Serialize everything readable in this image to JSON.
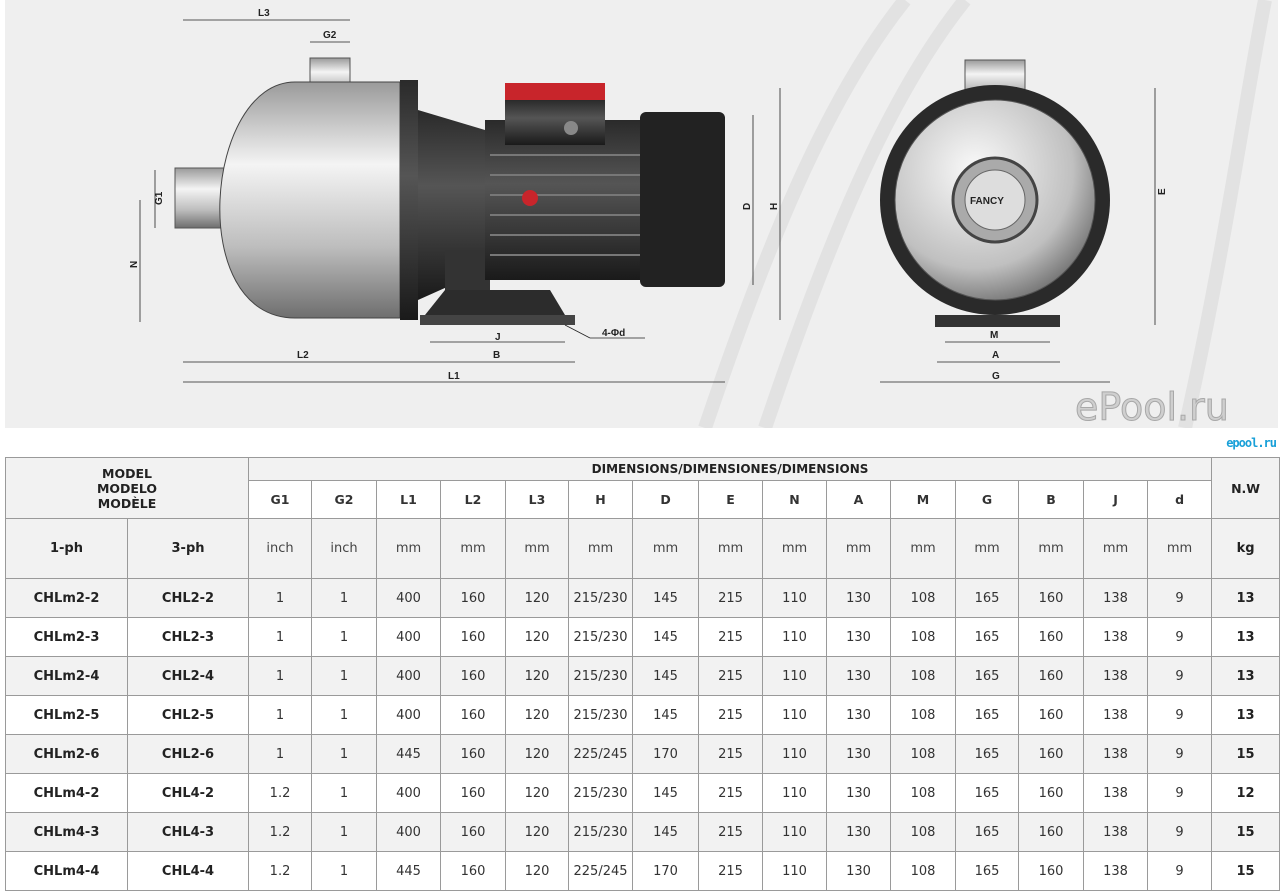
{
  "drawing": {
    "labels": {
      "L3": "L3",
      "G2": "G2",
      "G1": "G1",
      "N": "N",
      "D": "D",
      "H": "H",
      "J": "J",
      "B": "B",
      "L2": "L2",
      "L1": "L1",
      "hole": "4-Φd",
      "E": "E",
      "M": "M",
      "A": "A",
      "G": "G",
      "brand": "FANCY"
    },
    "colors": {
      "motor_box": "#c8252b",
      "background": "#efefef"
    }
  },
  "table": {
    "model_header": [
      "MODEL",
      "MODELO",
      "MODÈLE"
    ],
    "dimensions_header": "DIMENSIONS/DIMENSIONES/DIMENSIONS",
    "nw_header": "N.W",
    "columns": [
      "G1",
      "G2",
      "L1",
      "L2",
      "L3",
      "H",
      "D",
      "E",
      "N",
      "A",
      "M",
      "G",
      "B",
      "J",
      "d"
    ],
    "sub_headers": {
      "ph1": "1-ph",
      "ph3": "3-ph"
    },
    "units": [
      "inch",
      "inch",
      "mm",
      "mm",
      "mm",
      "mm",
      "mm",
      "mm",
      "mm",
      "mm",
      "mm",
      "mm",
      "mm",
      "mm",
      "mm"
    ],
    "nw_unit": "kg",
    "rows": [
      {
        "ph1": "CHLm2-2",
        "ph3": "CHL2-2",
        "v": [
          "1",
          "1",
          "400",
          "160",
          "120",
          "215/230",
          "145",
          "215",
          "110",
          "130",
          "108",
          "165",
          "160",
          "138",
          "9"
        ],
        "nw": "13"
      },
      {
        "ph1": "CHLm2-3",
        "ph3": "CHL2-3",
        "v": [
          "1",
          "1",
          "400",
          "160",
          "120",
          "215/230",
          "145",
          "215",
          "110",
          "130",
          "108",
          "165",
          "160",
          "138",
          "9"
        ],
        "nw": "13"
      },
      {
        "ph1": "CHLm2-4",
        "ph3": "CHL2-4",
        "v": [
          "1",
          "1",
          "400",
          "160",
          "120",
          "215/230",
          "145",
          "215",
          "110",
          "130",
          "108",
          "165",
          "160",
          "138",
          "9"
        ],
        "nw": "13"
      },
      {
        "ph1": "CHLm2-5",
        "ph3": "CHL2-5",
        "v": [
          "1",
          "1",
          "400",
          "160",
          "120",
          "215/230",
          "145",
          "215",
          "110",
          "130",
          "108",
          "165",
          "160",
          "138",
          "9"
        ],
        "nw": "13"
      },
      {
        "ph1": "CHLm2-6",
        "ph3": "CHL2-6",
        "v": [
          "1",
          "1",
          "445",
          "160",
          "120",
          "225/245",
          "170",
          "215",
          "110",
          "130",
          "108",
          "165",
          "160",
          "138",
          "9"
        ],
        "nw": "15"
      },
      {
        "ph1": "CHLm4-2",
        "ph3": "CHL4-2",
        "v": [
          "1.2",
          "1",
          "400",
          "160",
          "120",
          "215/230",
          "145",
          "215",
          "110",
          "130",
          "108",
          "165",
          "160",
          "138",
          "9"
        ],
        "nw": "12"
      },
      {
        "ph1": "CHLm4-3",
        "ph3": "CHL4-3",
        "v": [
          "1.2",
          "1",
          "400",
          "160",
          "120",
          "215/230",
          "145",
          "215",
          "110",
          "130",
          "108",
          "165",
          "160",
          "138",
          "9"
        ],
        "nw": "15"
      },
      {
        "ph1": "CHLm4-4",
        "ph3": "CHL4-4",
        "v": [
          "1.2",
          "1",
          "445",
          "160",
          "120",
          "225/245",
          "170",
          "215",
          "110",
          "130",
          "108",
          "165",
          "160",
          "138",
          "9"
        ],
        "nw": "15"
      }
    ]
  },
  "watermark": "ePool.ru",
  "logo": "epool.ru"
}
